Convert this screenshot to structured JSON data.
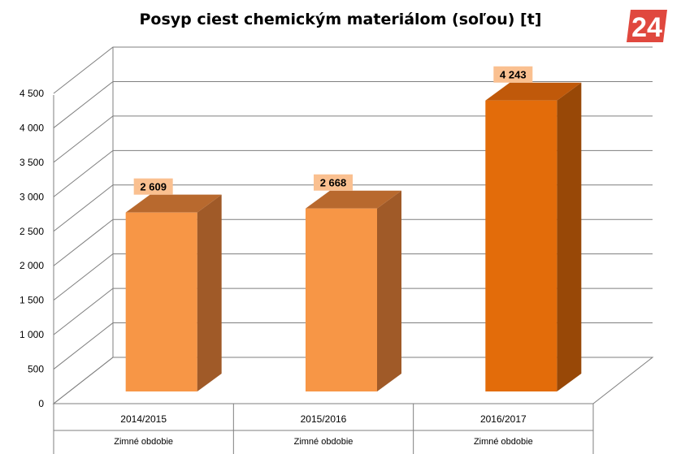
{
  "logo_text": "24",
  "chart_data": {
    "type": "bar",
    "title": "Posyp ciest chemickým materiálom (soľou) [t]",
    "categories": [
      "2014/2015",
      "2015/2016",
      "2016/2017"
    ],
    "category_sublabel": "Zimné obdobie",
    "values": [
      2609,
      2668,
      4243
    ],
    "value_labels": [
      "2 609",
      "2 668",
      "4 243"
    ],
    "ylim": [
      0,
      4500
    ],
    "yticks": [
      0,
      500,
      1000,
      1500,
      2000,
      2500,
      3000,
      3500,
      4000,
      4500
    ],
    "ytick_labels": [
      "0",
      "500",
      "1 000",
      "1 500",
      "2 000",
      "2 500",
      "3 000",
      "3 500",
      "4 000",
      "4 500"
    ],
    "grid": true,
    "legend": "none",
    "colors": {
      "bar_fronts": [
        "#F79646",
        "#F79646",
        "#E36C0A"
      ],
      "bar_sides": [
        "#A05A28",
        "#A05A28",
        "#984807"
      ],
      "bar_tops": [
        "#B8692E",
        "#B8692E",
        "#C0590A"
      ],
      "label_bg": "#FAC090",
      "grid": "#7f7f7f",
      "logo": "#E0483E"
    }
  }
}
